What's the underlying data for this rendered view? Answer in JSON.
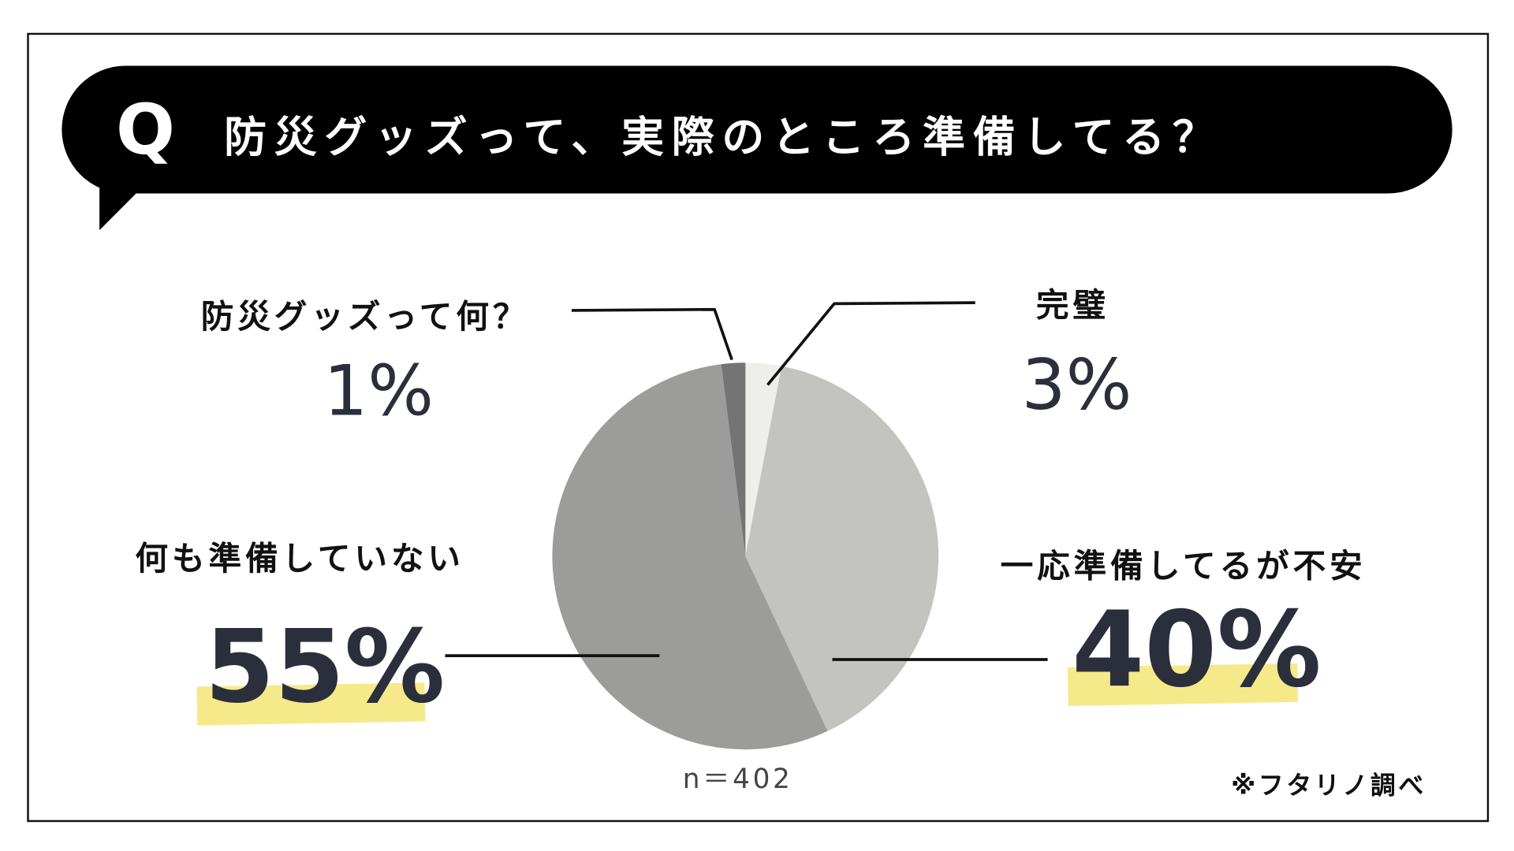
{
  "header": {
    "q_mark": "Q",
    "title": "防災グッズって、実際のところ準備してる？"
  },
  "chart_data": {
    "type": "pie",
    "title": "防災グッズって、実際のところ準備してる？",
    "slices": [
      {
        "label": "完璧",
        "value": 3,
        "display": "3%",
        "color": "#eeeeea"
      },
      {
        "label": "一応準備してるが不安",
        "value": 40,
        "display": "40%",
        "color": "#c3c4bf"
      },
      {
        "label": "何も準備していない",
        "value": 55,
        "display": "55%",
        "color": "#9c9d9a"
      },
      {
        "label": "防災グッズって何？",
        "value": 1,
        "display": "1%",
        "color": "#737473"
      }
    ],
    "sample_size": "n＝402",
    "highlight_color": "#f6e98a"
  },
  "footer": {
    "source": "※フタリノ調べ"
  }
}
